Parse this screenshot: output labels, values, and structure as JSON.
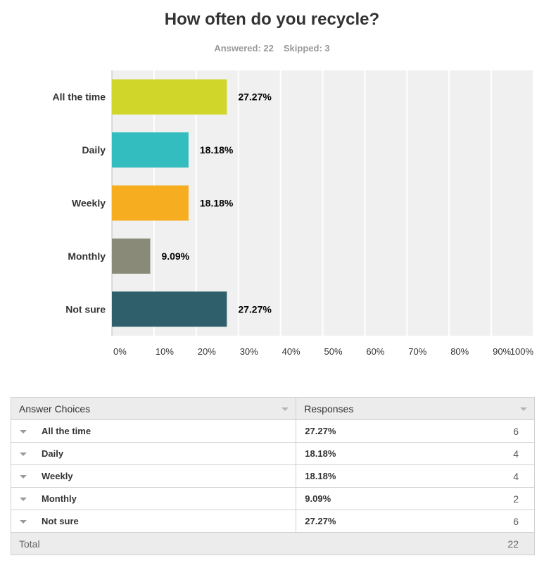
{
  "header": {
    "title": "How often do you recycle?",
    "answered": "Answered: 22",
    "skipped": "Skipped: 3"
  },
  "chart_data": {
    "type": "bar",
    "orientation": "horizontal",
    "categories": [
      "All the time",
      "Daily",
      "Weekly",
      "Monthly",
      "Not sure"
    ],
    "values": [
      27.27,
      18.18,
      18.18,
      9.09,
      27.27
    ],
    "value_labels": [
      "27.27%",
      "18.18%",
      "18.18%",
      "9.09%",
      "27.27%"
    ],
    "colors": [
      "#d1d62a",
      "#33bdbf",
      "#f6ad1f",
      "#898a78",
      "#2e5f6b"
    ],
    "xlim": [
      0,
      100
    ],
    "xticks": [
      "0%",
      "10%",
      "20%",
      "30%",
      "40%",
      "50%",
      "60%",
      "70%",
      "80%",
      "90%",
      "100%"
    ],
    "grid": true,
    "background": "#f0f0f0"
  },
  "table": {
    "headers": {
      "choices": "Answer Choices",
      "responses": "Responses"
    },
    "rows": [
      {
        "label": "All the time",
        "pct": "27.27%",
        "count": "6"
      },
      {
        "label": "Daily",
        "pct": "18.18%",
        "count": "4"
      },
      {
        "label": "Weekly",
        "pct": "18.18%",
        "count": "4"
      },
      {
        "label": "Monthly",
        "pct": "9.09%",
        "count": "2"
      },
      {
        "label": "Not sure",
        "pct": "27.27%",
        "count": "6"
      }
    ],
    "total": {
      "label": "Total",
      "count": "22"
    }
  }
}
